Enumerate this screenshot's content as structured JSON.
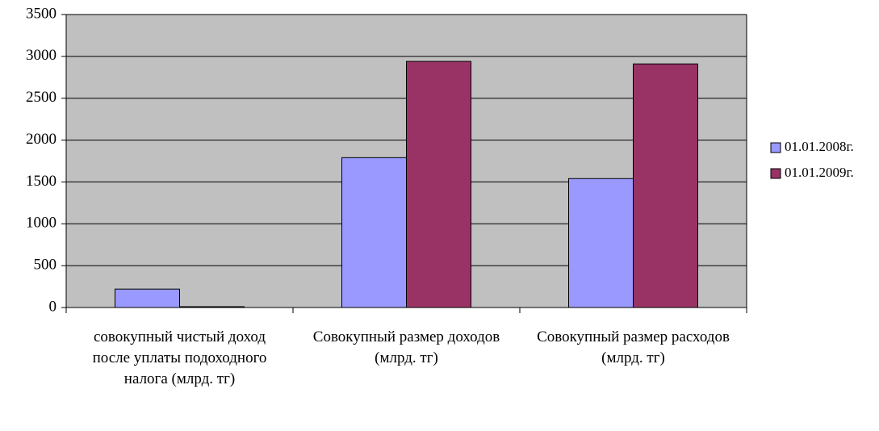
{
  "chart_data": {
    "type": "bar",
    "categories": [
      "совокупный чистый доход после уплаты подоходного налога (млрд. тг)",
      "Совокупный размер доходов (млрд. тг)",
      "Совокупный размер расходов (млрд. тг)"
    ],
    "series": [
      {
        "name": "01.01.2008г.",
        "color": "#9999ff",
        "values": [
          220,
          1790,
          1540
        ]
      },
      {
        "name": "01.01.2009г.",
        "color": "#993366",
        "values": [
          10,
          2940,
          2910
        ]
      }
    ],
    "ylim": [
      0,
      3500
    ],
    "yticks": [
      0,
      500,
      1000,
      1500,
      2000,
      2500,
      3000,
      3500
    ],
    "grid": true,
    "legend": "right"
  }
}
